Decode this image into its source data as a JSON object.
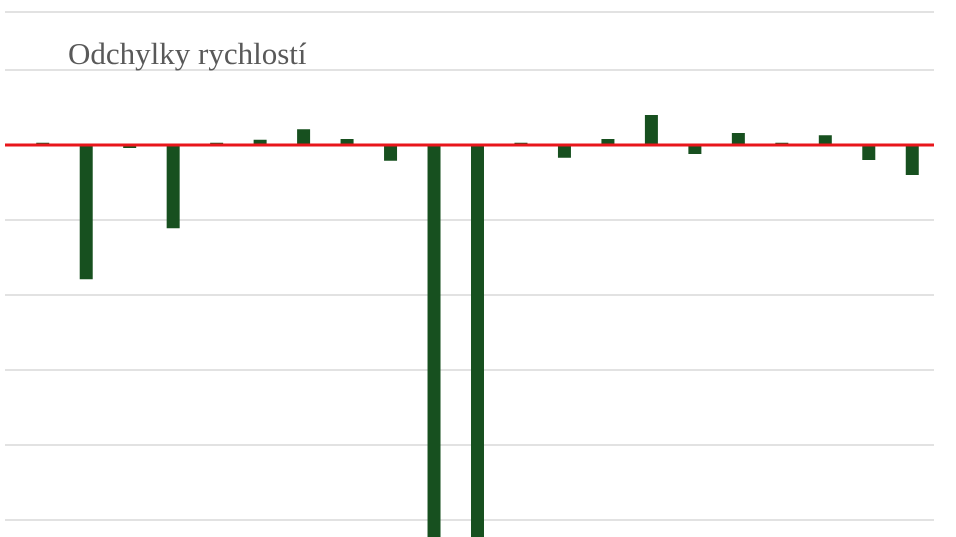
{
  "chart_data": {
    "type": "bar",
    "title": "Odchylky rychlostí",
    "categories": [
      null,
      null,
      null,
      null,
      null,
      null,
      null,
      null,
      null,
      null,
      null,
      null,
      null,
      null,
      null,
      null,
      null,
      null,
      null,
      null,
      null
    ],
    "values": [
      0.03,
      -1.79,
      -0.04,
      -1.11,
      0.03,
      0.07,
      0.21,
      0.08,
      -0.21,
      -5.5,
      -5.5,
      0.03,
      -0.17,
      0.08,
      0.4,
      -0.12,
      0.16,
      0.03,
      0.13,
      -0.2,
      -0.4
    ],
    "color": "#17501f",
    "ylim": [
      -5.2,
      1.8
    ],
    "yticks": [
      -5,
      -4,
      -3,
      -2,
      -1,
      0,
      1
    ],
    "grid": true
  }
}
